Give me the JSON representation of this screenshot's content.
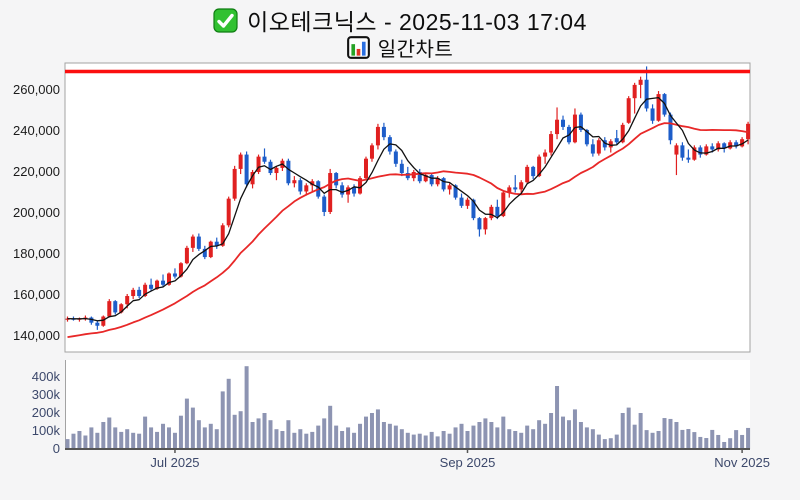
{
  "header": {
    "title": "이오테크닉스 - 2025-11-03 17:04",
    "subtitle": "일간차트",
    "check_icon": "green-checkbox-icon",
    "chart_icon": "bar-chart-icon"
  },
  "colors": {
    "background": "#f5f5f6",
    "plot_background": "#ffffff",
    "plot_border": "#a3a3a3",
    "candle_up": "#e02020",
    "candle_down": "#1d5dc9",
    "volume_bar": "#8d94b2",
    "ma_fast": "#111111",
    "ma_slow": "#e82828",
    "limit_line": "#fb0f0f",
    "price_label": "#1c1c1c",
    "axis_label": "#3c486b",
    "volume_baseline": "#555555"
  },
  "chart_data": {
    "type": "candlestick+volume",
    "symbol_name": "이오테크닉스",
    "datetime": "2025-11-03 17:04",
    "chart_kind_label": "일간차트",
    "price_axis": {
      "ticks": [
        260000,
        240000,
        220000,
        200000,
        180000,
        160000,
        140000
      ],
      "labels": [
        "260,000",
        "240,000",
        "220,000",
        "200,000",
        "180,000",
        "160,000",
        "140,000"
      ]
    },
    "volume_axis": {
      "ticks": [
        400000,
        300000,
        200000,
        100000,
        0
      ],
      "labels": [
        "400k",
        "300k",
        "200k",
        "100k",
        "0"
      ]
    },
    "x_axis": {
      "tick_indices": [
        18,
        67,
        113
      ],
      "tick_labels": [
        "Jul 2025",
        "Sep 2025",
        "Nov 2025"
      ]
    },
    "limit_line_value": 269000,
    "ma_fast_window": 5,
    "ma_slow_window": 20,
    "ma_slow_seed": 139000,
    "candles": [
      [
        148500,
        149500,
        147000,
        148500,
        55000
      ],
      [
        148500,
        149500,
        147500,
        148000,
        85000
      ],
      [
        148000,
        149000,
        147000,
        148500,
        100000
      ],
      [
        148500,
        150000,
        147500,
        149000,
        75000
      ],
      [
        149000,
        149500,
        145500,
        146500,
        120000
      ],
      [
        146500,
        147500,
        143000,
        145000,
        90000
      ],
      [
        145000,
        150000,
        144500,
        149500,
        150000
      ],
      [
        149500,
        158000,
        149000,
        157000,
        175000
      ],
      [
        157000,
        157500,
        150500,
        151500,
        120000
      ],
      [
        151500,
        156000,
        151000,
        155500,
        95000
      ],
      [
        155500,
        160500,
        153500,
        159500,
        110000
      ],
      [
        159500,
        163500,
        158000,
        162500,
        90000
      ],
      [
        162500,
        164000,
        158500,
        159500,
        85000
      ],
      [
        159500,
        166000,
        159000,
        165000,
        180000
      ],
      [
        165000,
        168000,
        162000,
        163000,
        120000
      ],
      [
        163000,
        167500,
        162500,
        167000,
        95000
      ],
      [
        167000,
        170000,
        164000,
        165000,
        140000
      ],
      [
        165000,
        171000,
        164500,
        170500,
        120000
      ],
      [
        170500,
        173000,
        168000,
        169000,
        90000
      ],
      [
        169000,
        176000,
        168500,
        175500,
        185000
      ],
      [
        175500,
        184000,
        175000,
        183000,
        280000
      ],
      [
        183000,
        189500,
        181000,
        188500,
        230000
      ],
      [
        188500,
        190000,
        181500,
        182500,
        160000
      ],
      [
        182500,
        184000,
        177500,
        178500,
        120000
      ],
      [
        178500,
        186500,
        178000,
        186000,
        140000
      ],
      [
        186000,
        188000,
        182500,
        184000,
        110000
      ],
      [
        184000,
        195000,
        183500,
        194000,
        320000
      ],
      [
        194000,
        208000,
        193000,
        207000,
        390000
      ],
      [
        207000,
        223000,
        206000,
        221500,
        190000
      ],
      [
        221500,
        229500,
        219000,
        228500,
        210000
      ],
      [
        228500,
        230000,
        212500,
        214000,
        460000
      ],
      [
        214000,
        221000,
        212000,
        220000,
        150000
      ],
      [
        220000,
        228500,
        219000,
        227500,
        170000
      ],
      [
        227500,
        231500,
        224000,
        225000,
        200000
      ],
      [
        225000,
        226000,
        218500,
        219500,
        160000
      ],
      [
        219500,
        223000,
        216000,
        222000,
        110000
      ],
      [
        222000,
        226500,
        220500,
        225500,
        100000
      ],
      [
        225500,
        226500,
        213500,
        214500,
        160000
      ],
      [
        214500,
        218000,
        212500,
        216000,
        90000
      ],
      [
        216000,
        217000,
        209000,
        210500,
        110000
      ],
      [
        210500,
        214500,
        208500,
        213500,
        85000
      ],
      [
        213500,
        216500,
        210000,
        215500,
        95000
      ],
      [
        215500,
        216000,
        207000,
        208000,
        130000
      ],
      [
        208000,
        209000,
        198500,
        200500,
        170000
      ],
      [
        200500,
        221500,
        199500,
        219500,
        240000
      ],
      [
        219500,
        220000,
        212000,
        213500,
        130000
      ],
      [
        213500,
        215000,
        207500,
        209000,
        100000
      ],
      [
        209000,
        213500,
        205000,
        212500,
        120000
      ],
      [
        212500,
        214000,
        208000,
        209500,
        90000
      ],
      [
        209500,
        218000,
        209000,
        217000,
        140000
      ],
      [
        217000,
        227500,
        216500,
        226500,
        180000
      ],
      [
        226500,
        234000,
        225000,
        233000,
        200000
      ],
      [
        233000,
        243500,
        231000,
        242000,
        220000
      ],
      [
        242000,
        244000,
        235500,
        237000,
        150000
      ],
      [
        237000,
        238000,
        228500,
        230000,
        140000
      ],
      [
        230000,
        231000,
        222500,
        224000,
        130000
      ],
      [
        224000,
        226000,
        218000,
        219500,
        110000
      ],
      [
        219500,
        222500,
        216000,
        217000,
        90000
      ],
      [
        217000,
        221000,
        215500,
        220000,
        80000
      ],
      [
        220000,
        221500,
        214500,
        215500,
        85000
      ],
      [
        215500,
        219500,
        215000,
        218500,
        75000
      ],
      [
        218500,
        219500,
        213000,
        214000,
        95000
      ],
      [
        214000,
        218000,
        213000,
        217000,
        70000
      ],
      [
        217000,
        217500,
        210500,
        211500,
        100000
      ],
      [
        211500,
        214500,
        209000,
        213500,
        85000
      ],
      [
        213500,
        214000,
        206500,
        207500,
        120000
      ],
      [
        207500,
        209500,
        202500,
        203500,
        140000
      ],
      [
        203500,
        207500,
        202000,
        206500,
        100000
      ],
      [
        206500,
        207000,
        196500,
        197500,
        130000
      ],
      [
        197500,
        198000,
        188500,
        192000,
        150000
      ],
      [
        192000,
        198000,
        189500,
        197500,
        170000
      ],
      [
        197500,
        204000,
        196500,
        203000,
        150000
      ],
      [
        203000,
        206500,
        197000,
        198500,
        120000
      ],
      [
        198500,
        211000,
        198000,
        210000,
        180000
      ],
      [
        210000,
        213500,
        207500,
        212500,
        110000
      ],
      [
        212500,
        218500,
        210000,
        211500,
        100000
      ],
      [
        211500,
        216000,
        209500,
        215000,
        90000
      ],
      [
        215000,
        223500,
        214000,
        222500,
        130000
      ],
      [
        222500,
        223000,
        216500,
        218000,
        110000
      ],
      [
        218000,
        228500,
        217500,
        227500,
        160000
      ],
      [
        227500,
        231000,
        224000,
        229500,
        140000
      ],
      [
        229500,
        240000,
        228000,
        238500,
        200000
      ],
      [
        238500,
        251500,
        236000,
        245500,
        350000
      ],
      [
        245500,
        247500,
        240500,
        242000,
        180000
      ],
      [
        242000,
        243000,
        233500,
        234500,
        160000
      ],
      [
        234500,
        251000,
        234000,
        248000,
        220000
      ],
      [
        248000,
        249000,
        239500,
        240500,
        150000
      ],
      [
        240500,
        241000,
        232500,
        233500,
        120000
      ],
      [
        233500,
        236000,
        227500,
        229000,
        110000
      ],
      [
        229000,
        236500,
        228000,
        235500,
        80000
      ],
      [
        235500,
        237000,
        230500,
        232000,
        55000
      ],
      [
        232000,
        236000,
        229500,
        235000,
        60000
      ],
      [
        236500,
        240500,
        233500,
        234500,
        80000
      ],
      [
        234500,
        244000,
        234000,
        243000,
        200000
      ],
      [
        244000,
        257000,
        243500,
        256000,
        230000
      ],
      [
        256000,
        263500,
        248500,
        262500,
        135000
      ],
      [
        262500,
        266500,
        256000,
        265000,
        200000
      ],
      [
        265000,
        271500,
        249500,
        251000,
        105000
      ],
      [
        251000,
        253000,
        243500,
        245000,
        90000
      ],
      [
        245000,
        259500,
        244500,
        258000,
        100000
      ],
      [
        258000,
        258500,
        247000,
        248000,
        172000
      ],
      [
        248000,
        249000,
        233500,
        235500,
        167000
      ],
      [
        228500,
        234000,
        218500,
        233000,
        150000
      ],
      [
        233000,
        234500,
        225500,
        227000,
        106000
      ],
      [
        227000,
        231000,
        224500,
        226000,
        111000
      ],
      [
        226000,
        233000,
        225500,
        232000,
        94000
      ],
      [
        232000,
        233000,
        227000,
        228500,
        67000
      ],
      [
        228500,
        233500,
        228000,
        232500,
        61000
      ],
      [
        232500,
        234000,
        229500,
        231000,
        106000
      ],
      [
        231000,
        235000,
        230000,
        234000,
        78000
      ],
      [
        234000,
        234500,
        229500,
        231500,
        39000
      ],
      [
        231500,
        235500,
        231000,
        234500,
        60000
      ],
      [
        234500,
        235500,
        231500,
        232500,
        105000
      ],
      [
        232500,
        237000,
        232000,
        236000,
        78000
      ],
      [
        236000,
        244500,
        233500,
        243500,
        117000
      ]
    ]
  }
}
